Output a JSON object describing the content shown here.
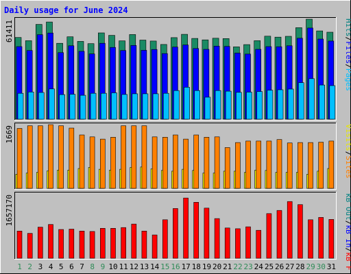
{
  "chart_data": {
    "type": "bar",
    "title": "Daily usage for June 2024",
    "x": [
      1,
      2,
      3,
      4,
      5,
      6,
      7,
      8,
      9,
      10,
      11,
      12,
      13,
      14,
      15,
      16,
      17,
      18,
      19,
      20,
      21,
      22,
      23,
      24,
      25,
      26,
      27,
      28,
      29,
      30,
      31
    ],
    "x_label_colors": [
      "#2e8b57",
      "#2e8b57",
      "#000000",
      "#000000",
      "#000000",
      "#000000",
      "#000000",
      "#2e8b57",
      "#2e8b57",
      "#000000",
      "#000000",
      "#000000",
      "#000000",
      "#000000",
      "#2e8b57",
      "#2e8b57",
      "#000000",
      "#000000",
      "#000000",
      "#000000",
      "#000000",
      "#2e8b57",
      "#2e8b57",
      "#000000",
      "#000000",
      "#000000",
      "#000000",
      "#000000",
      "#2e8b57",
      "#2e8b57",
      "#000000"
    ],
    "panels": [
      {
        "name": "hits-files-pages",
        "max_label": "61411",
        "ymax": 61411,
        "right_labels": [
          {
            "text": "Hits",
            "color": "#008080"
          },
          {
            "text": "/",
            "color": "#000000"
          },
          {
            "text": "Files",
            "color": "#0000ff"
          },
          {
            "text": "/",
            "color": "#000000"
          },
          {
            "text": "Pages",
            "color": "#00bfff"
          }
        ],
        "series": [
          {
            "name": "Hits",
            "color": "#1a8a64",
            "values": [
              50200,
              48200,
              58200,
              59700,
              46600,
              50600,
              47800,
              46400,
              53000,
              51500,
              48100,
              52000,
              48600,
              48000,
              45900,
              50100,
              52100,
              49600,
              48700,
              49700,
              49500,
              44400,
              45800,
              48200,
              51000,
              50400,
              50900,
              56200,
              61400,
              54200,
              53400
            ]
          },
          {
            "name": "Files",
            "color": "#0000ff",
            "values": [
              44600,
              42200,
              51900,
              52900,
              40900,
              45100,
              41700,
              40100,
              46600,
              44100,
              42200,
              45300,
              42300,
              42800,
              40300,
              44300,
              45600,
              43400,
              42900,
              44900,
              44700,
              40600,
              40000,
              42900,
              44600,
              44500,
              45100,
              49700,
              56000,
              49200,
              48000
            ]
          },
          {
            "name": "Pages",
            "color": "#00bfff",
            "values": [
              15900,
              16700,
              16400,
              18600,
              15100,
              15300,
              14700,
              15900,
              15900,
              16200,
              15200,
              15600,
              15600,
              15600,
              15900,
              17600,
              19600,
              17600,
              13500,
              17600,
              17200,
              16500,
              16600,
              17000,
              17800,
              18100,
              18500,
              22400,
              24900,
              21000,
              20600
            ]
          }
        ]
      },
      {
        "name": "visits-sites",
        "max_label": "1669",
        "ymax": 1669,
        "right_labels": [
          {
            "text": "Visits",
            "color": "#e6e600"
          },
          {
            "text": "/",
            "color": "#000000"
          },
          {
            "text": "Sites",
            "color": "#ff8000"
          }
        ],
        "series": [
          {
            "name": "Visits",
            "color": "#ffff00",
            "values": [
              370,
              400,
              420,
              460,
              480,
              480,
              520,
              550,
              500,
              480,
              500,
              550,
              560,
              510,
              470,
              450,
              500,
              470,
              400,
              400,
              450,
              450,
              420,
              480,
              470,
              420,
              420,
              420,
              370,
              450,
              520
            ]
          },
          {
            "name": "Sites",
            "color": "#ff8000",
            "values": [
              1570,
              1640,
              1640,
              1700,
              1640,
              1580,
              1400,
              1350,
              1290,
              1340,
              1640,
              1640,
              1640,
              1350,
              1340,
              1400,
              1290,
              1400,
              1340,
              1350,
              1070,
              1200,
              1240,
              1240,
              1240,
              1280,
              1190,
              1200,
              1200,
              1210,
              1240
            ]
          }
        ]
      },
      {
        "name": "kb-in-out",
        "max_label": "1657170",
        "ymax": 1657170,
        "right_labels": [
          {
            "text": "kB Out",
            "color": "#008080"
          },
          {
            "text": "/",
            "color": "#000000"
          },
          {
            "text": "kB In",
            "color": "#0000ff"
          },
          {
            "text": "/",
            "color": "#000000"
          },
          {
            "text": "kB F",
            "color": "#ff0000"
          }
        ],
        "series": [
          {
            "name": "kB F",
            "color": "#ff0000",
            "values": [
              700000,
              640000,
              800000,
              870000,
              740000,
              750000,
              700000,
              690000,
              770000,
              770000,
              790000,
              880000,
              700000,
              600000,
              990000,
              1280000,
              1550000,
              1440000,
              1290000,
              1020000,
              780000,
              760000,
              810000,
              720000,
              1150000,
              1230000,
              1460000,
              1380000,
              990000,
              1050000,
              1000000
            ]
          }
        ]
      }
    ]
  }
}
